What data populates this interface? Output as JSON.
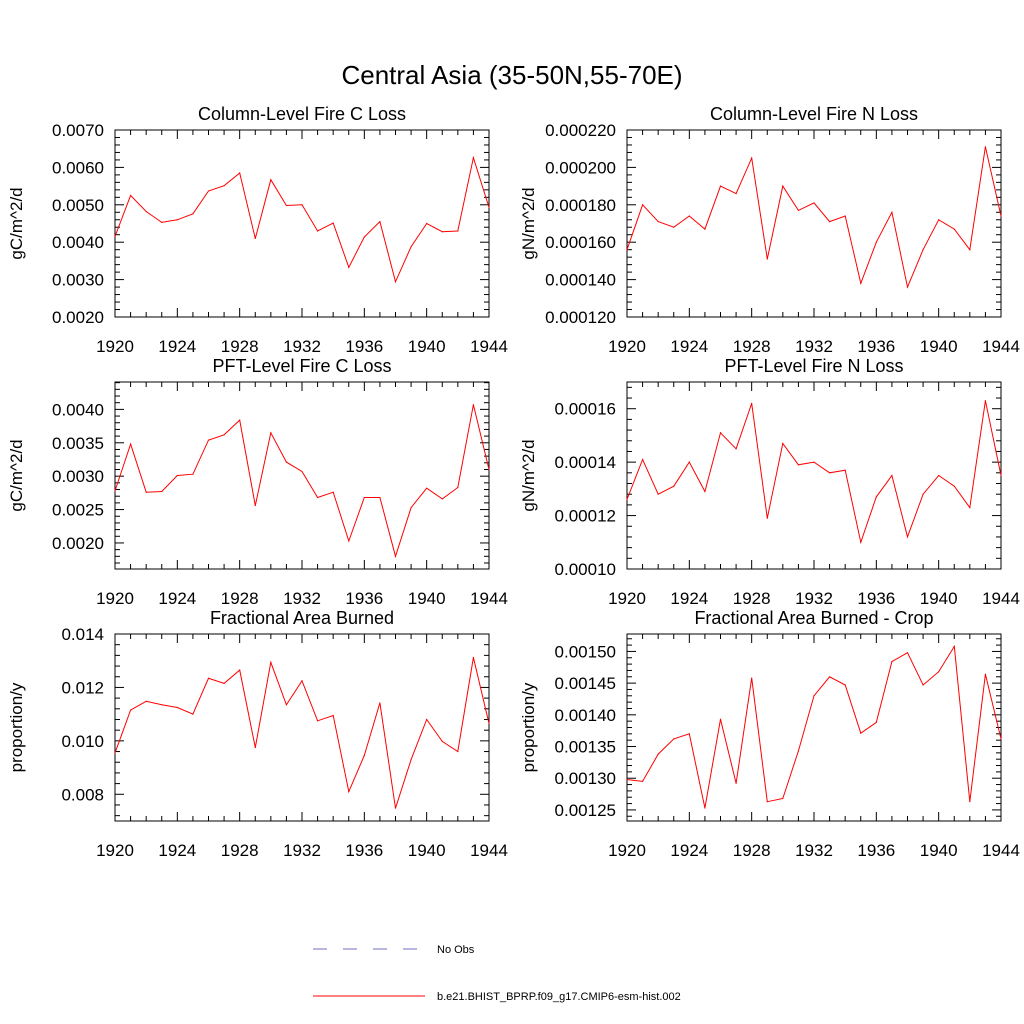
{
  "figure": {
    "title": "Central Asia (35-50N,55-70E)"
  },
  "legend": {
    "entries": [
      {
        "name": "No Obs",
        "color": "#6f6fbf",
        "dashed": true
      },
      {
        "name": "b.e21.BHIST_BPRP.f09_g17.CMIP6-esm-hist.002",
        "color": "#ff0000",
        "dashed": false
      }
    ]
  },
  "chart_data": [
    {
      "type": "line",
      "title": "Column-Level Fire C Loss",
      "xlabel": "",
      "ylabel": "gC/m^2/d",
      "xlim": [
        1920,
        1944
      ],
      "ylim": [
        0.002,
        0.007
      ],
      "xticks": [
        1920,
        1924,
        1928,
        1932,
        1936,
        1940,
        1944
      ],
      "xtick_labels": [
        "1920",
        "1924",
        "1928",
        "1932",
        "1936",
        "1940",
        "1944"
      ],
      "yticks": [
        0.002,
        0.003,
        0.004,
        0.005,
        0.006,
        0.007
      ],
      "ytick_labels": [
        "0.0020",
        "0.0030",
        "0.0040",
        "0.0050",
        "0.0060",
        "0.0070"
      ],
      "series": [
        {
          "color": "#ff0000",
          "x": [
            1920,
            1921,
            1922,
            1923,
            1924,
            1925,
            1926,
            1927,
            1928,
            1929,
            1930,
            1931,
            1932,
            1933,
            1934,
            1935,
            1936,
            1937,
            1938,
            1939,
            1940,
            1941,
            1942,
            1943,
            1944
          ],
          "y": [
            0.00415,
            0.00525,
            0.00482,
            0.00453,
            0.0046,
            0.00476,
            0.00537,
            0.00551,
            0.00585,
            0.0041,
            0.00567,
            0.00498,
            0.005,
            0.0043,
            0.00451,
            0.00333,
            0.00414,
            0.00455,
            0.00294,
            0.00388,
            0.0045,
            0.00428,
            0.0043,
            0.00626,
            0.00493
          ]
        }
      ]
    },
    {
      "type": "line",
      "title": "Column-Level Fire N Loss",
      "xlabel": "",
      "ylabel": "gN/m^2/d",
      "xlim": [
        1920,
        1944
      ],
      "ylim": [
        0.00012,
        0.00022
      ],
      "xticks": [
        1920,
        1924,
        1928,
        1932,
        1936,
        1940,
        1944
      ],
      "xtick_labels": [
        "1920",
        "1924",
        "1928",
        "1932",
        "1936",
        "1940",
        "1944"
      ],
      "yticks": [
        0.00012,
        0.00014,
        0.00016,
        0.00018,
        0.0002,
        0.00022
      ],
      "ytick_labels": [
        "0.000120",
        "0.000140",
        "0.000160",
        "0.000180",
        "0.000200",
        "0.000220"
      ],
      "series": [
        {
          "color": "#ff0000",
          "x": [
            1920,
            1921,
            1922,
            1923,
            1924,
            1925,
            1926,
            1927,
            1928,
            1929,
            1930,
            1931,
            1932,
            1933,
            1934,
            1935,
            1936,
            1937,
            1938,
            1939,
            1940,
            1941,
            1942,
            1943,
            1944
          ],
          "y": [
            0.000156,
            0.00018,
            0.000171,
            0.000168,
            0.000174,
            0.000167,
            0.00019,
            0.000186,
            0.000205,
            0.000151,
            0.00019,
            0.000177,
            0.000181,
            0.000171,
            0.000174,
            0.000138,
            0.00016,
            0.000176,
            0.000136,
            0.000156,
            0.000172,
            0.000167,
            0.000156,
            0.000211,
            0.000174
          ]
        }
      ]
    },
    {
      "type": "line",
      "title": "PFT-Level Fire C Loss",
      "xlabel": "",
      "ylabel": "gC/m^2/d",
      "xlim": [
        1920,
        1944
      ],
      "ylim": [
        0.00161,
        0.00441
      ],
      "xticks": [
        1920,
        1924,
        1928,
        1932,
        1936,
        1940,
        1944
      ],
      "xtick_labels": [
        "1920",
        "1924",
        "1928",
        "1932",
        "1936",
        "1940",
        "1944"
      ],
      "yticks": [
        0.002,
        0.0025,
        0.003,
        0.0035,
        0.004
      ],
      "ytick_labels": [
        "0.0020",
        "0.0025",
        "0.0030",
        "0.0035",
        "0.0040"
      ],
      "series": [
        {
          "color": "#ff0000",
          "x": [
            1920,
            1921,
            1922,
            1923,
            1924,
            1925,
            1926,
            1927,
            1928,
            1929,
            1930,
            1931,
            1932,
            1933,
            1934,
            1935,
            1936,
            1937,
            1938,
            1939,
            1940,
            1941,
            1942,
            1943,
            1944
          ],
          "y": [
            0.00278,
            0.00348,
            0.00276,
            0.00277,
            0.00301,
            0.00303,
            0.00354,
            0.00362,
            0.00384,
            0.00256,
            0.00365,
            0.00321,
            0.00307,
            0.00268,
            0.00276,
            0.00203,
            0.00268,
            0.00268,
            0.0018,
            0.00253,
            0.00282,
            0.00266,
            0.00283,
            0.00407,
            0.0031
          ]
        }
      ]
    },
    {
      "type": "line",
      "title": "PFT-Level Fire N Loss",
      "xlabel": "",
      "ylabel": "gN/m^2/d",
      "xlim": [
        1920,
        1944
      ],
      "ylim": [
        0.0001,
        0.00017
      ],
      "xticks": [
        1920,
        1924,
        1928,
        1932,
        1936,
        1940,
        1944
      ],
      "xtick_labels": [
        "1920",
        "1924",
        "1928",
        "1932",
        "1936",
        "1940",
        "1944"
      ],
      "yticks": [
        0.0001,
        0.00012,
        0.00014,
        0.00016
      ],
      "ytick_labels": [
        "0.00010",
        "0.00012",
        "0.00014",
        "0.00016"
      ],
      "series": [
        {
          "color": "#ff0000",
          "x": [
            1920,
            1921,
            1922,
            1923,
            1924,
            1925,
            1926,
            1927,
            1928,
            1929,
            1930,
            1931,
            1932,
            1933,
            1934,
            1935,
            1936,
            1937,
            1938,
            1939,
            1940,
            1941,
            1942,
            1943,
            1944
          ],
          "y": [
            0.000126,
            0.000141,
            0.000128,
            0.000131,
            0.00014,
            0.000129,
            0.000151,
            0.000145,
            0.000162,
            0.000119,
            0.000147,
            0.000139,
            0.00014,
            0.000136,
            0.000137,
            0.00011,
            0.000127,
            0.000135,
            0.000112,
            0.000128,
            0.000135,
            0.000131,
            0.000123,
            0.000163,
            0.000135
          ]
        }
      ]
    },
    {
      "type": "line",
      "title": "Fractional Area Burned",
      "xlabel": "",
      "ylabel": "proportion/y",
      "xlim": [
        1920,
        1944
      ],
      "ylim": [
        0.007,
        0.014
      ],
      "xticks": [
        1920,
        1924,
        1928,
        1932,
        1936,
        1940,
        1944
      ],
      "xtick_labels": [
        "1920",
        "1924",
        "1928",
        "1932",
        "1936",
        "1940",
        "1944"
      ],
      "yticks": [
        0.008,
        0.01,
        0.012,
        0.014
      ],
      "ytick_labels": [
        "0.008",
        "0.010",
        "0.012",
        "0.014"
      ],
      "series": [
        {
          "color": "#ff0000",
          "x": [
            1920,
            1921,
            1922,
            1923,
            1924,
            1925,
            1926,
            1927,
            1928,
            1929,
            1930,
            1931,
            1932,
            1933,
            1934,
            1935,
            1936,
            1937,
            1938,
            1939,
            1940,
            1941,
            1942,
            1943,
            1944
          ],
          "y": [
            0.00955,
            0.01115,
            0.01148,
            0.01135,
            0.01125,
            0.011,
            0.01234,
            0.01215,
            0.01265,
            0.00975,
            0.01294,
            0.01135,
            0.01225,
            0.01075,
            0.01095,
            0.0081,
            0.00945,
            0.01142,
            0.00748,
            0.0093,
            0.0108,
            0.00998,
            0.0096,
            0.01312,
            0.01065
          ]
        }
      ]
    },
    {
      "type": "line",
      "title": "Fractional Area Burned - Crop",
      "xlabel": "",
      "ylabel": "proportion/y",
      "xlim": [
        1920,
        1944
      ],
      "ylim": [
        0.0012325,
        0.0015275
      ],
      "xticks": [
        1920,
        1924,
        1928,
        1932,
        1936,
        1940,
        1944
      ],
      "xtick_labels": [
        "1920",
        "1924",
        "1928",
        "1932",
        "1936",
        "1940",
        "1944"
      ],
      "yticks": [
        0.00125,
        0.0013,
        0.00135,
        0.0014,
        0.00145,
        0.0015
      ],
      "ytick_labels": [
        "0.00125",
        "0.00130",
        "0.00135",
        "0.00140",
        "0.00145",
        "0.00150"
      ],
      "series": [
        {
          "color": "#ff0000",
          "x": [
            1920,
            1921,
            1922,
            1923,
            1924,
            1925,
            1926,
            1927,
            1928,
            1929,
            1930,
            1931,
            1932,
            1933,
            1934,
            1935,
            1936,
            1937,
            1938,
            1939,
            1940,
            1941,
            1942,
            1943,
            1944
          ],
          "y": [
            0.001298,
            0.001295,
            0.001338,
            0.001362,
            0.00137,
            0.001253,
            0.001393,
            0.001292,
            0.001458,
            0.001263,
            0.001268,
            0.001343,
            0.00143,
            0.00146,
            0.001447,
            0.001371,
            0.001388,
            0.001484,
            0.001498,
            0.001447,
            0.001468,
            0.001508,
            0.001263,
            0.001464,
            0.001362
          ]
        }
      ]
    }
  ]
}
